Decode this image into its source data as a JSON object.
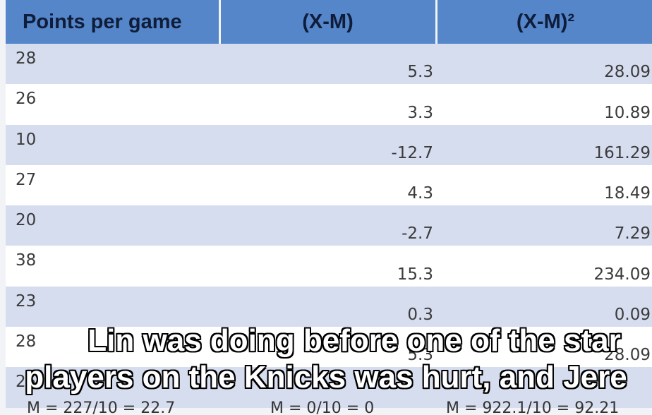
{
  "table": {
    "headers": [
      "Points per game",
      "(X-M)",
      "(X-M)²"
    ],
    "rows": [
      [
        "28",
        "5.3",
        "28.09"
      ],
      [
        "26",
        "3.3",
        "10.89"
      ],
      [
        "10",
        "-12.7",
        "161.29"
      ],
      [
        "27",
        "4.3",
        "18.49"
      ],
      [
        "20",
        "-2.7",
        "7.29"
      ],
      [
        "38",
        "15.3",
        "234.09"
      ],
      [
        "23",
        "0.3",
        "0.09"
      ],
      [
        "28",
        "5.3",
        "28.09"
      ],
      [
        "25",
        "",
        ""
      ]
    ]
  },
  "means": {
    "col1": "M = 227/10 = 22.7",
    "col2": "M = 0/10 = 0",
    "col3": "M = 922.1/10 = 92.21"
  },
  "subtitles": {
    "line1": "Lin was doing before one of the star",
    "line2": "players on the Knicks was hurt, and Jere"
  },
  "colors": {
    "header_bg": "#5586c9",
    "row_band": "#d6ddef",
    "row_plain": "#ffffff"
  }
}
